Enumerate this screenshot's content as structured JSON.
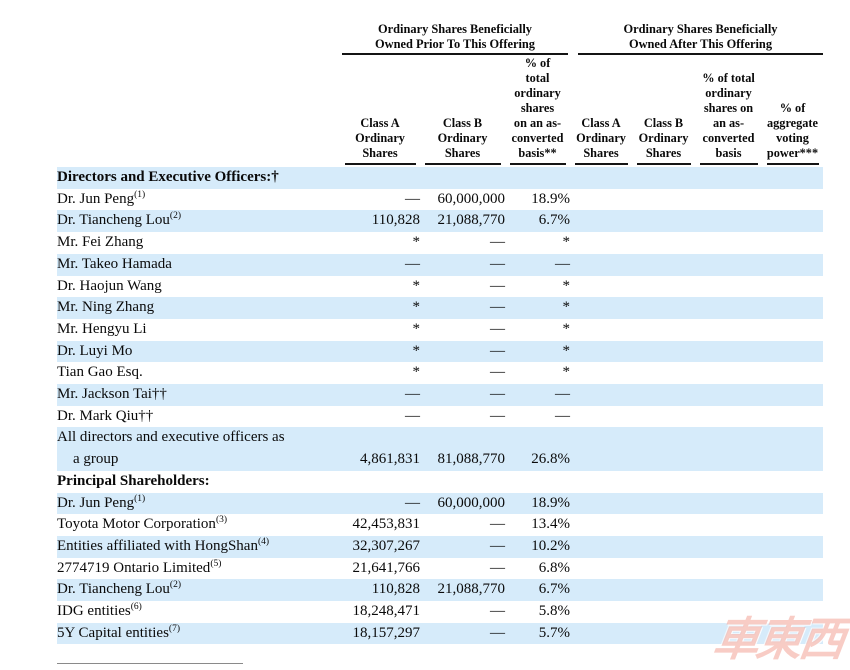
{
  "watermark": {
    "text": "車東西"
  },
  "colors": {
    "row_stripe": "#d6ebfa",
    "header_rule": "#141414",
    "footnote_rule": "#8a8a8a",
    "watermark": "#f2a296"
  },
  "header": {
    "groups": [
      {
        "label": "Ordinary Shares Beneficially\nOwned Prior To This Offering"
      },
      {
        "label": "Ordinary Shares Beneficially\nOwned After This Offering"
      }
    ],
    "columns": [
      {
        "label": "Class A\nOrdinary\nShares"
      },
      {
        "label": "Class B\nOrdinary\nShares"
      },
      {
        "label": "% of\ntotal\nordinary\nshares\non an as-\nconverted\nbasis**"
      },
      {
        "label": "Class A\nOrdinary\nShares"
      },
      {
        "label": "Class B\nOrdinary\nShares"
      },
      {
        "label": "% of total\nordinary\nshares on\nan as-\nconverted\nbasis"
      },
      {
        "label": "% of\naggregate\nvoting\npower***"
      }
    ]
  },
  "body": {
    "rows": [
      {
        "type": "section",
        "label": "Directors and Executive Officers:†"
      },
      {
        "type": "row",
        "name": "Dr. Jun Peng",
        "sup": "(1)",
        "values": [
          "—",
          "60,000,000",
          "18.9%",
          "",
          "",
          "",
          ""
        ]
      },
      {
        "type": "row",
        "name": "Dr. Tiancheng Lou",
        "sup": "(2)",
        "values": [
          "110,828",
          "21,088,770",
          "6.7%",
          "",
          "",
          "",
          ""
        ]
      },
      {
        "type": "row",
        "name": "Mr. Fei Zhang",
        "sup": "",
        "values": [
          "*",
          "—",
          "*",
          "",
          "",
          "",
          ""
        ]
      },
      {
        "type": "row",
        "name": "Mr. Takeo Hamada",
        "sup": "",
        "values": [
          "—",
          "—",
          "—",
          "",
          "",
          "",
          ""
        ]
      },
      {
        "type": "row",
        "name": "Dr. Haojun Wang",
        "sup": "",
        "values": [
          "*",
          "—",
          "*",
          "",
          "",
          "",
          ""
        ]
      },
      {
        "type": "row",
        "name": "Mr. Ning Zhang",
        "sup": "",
        "values": [
          "*",
          "—",
          "*",
          "",
          "",
          "",
          ""
        ]
      },
      {
        "type": "row",
        "name": "Mr. Hengyu Li",
        "sup": "",
        "values": [
          "*",
          "—",
          "*",
          "",
          "",
          "",
          ""
        ]
      },
      {
        "type": "row",
        "name": "Dr. Luyi Mo",
        "sup": "",
        "values": [
          "*",
          "—",
          "*",
          "",
          "",
          "",
          ""
        ]
      },
      {
        "type": "row",
        "name": "Tian Gao Esq.",
        "sup": "",
        "values": [
          "*",
          "—",
          "*",
          "",
          "",
          "",
          ""
        ]
      },
      {
        "type": "row",
        "name": "Mr. Jackson Tai††",
        "sup": "",
        "values": [
          "—",
          "—",
          "—",
          "",
          "",
          "",
          ""
        ]
      },
      {
        "type": "row",
        "name": "Dr. Mark Qiu††",
        "sup": "",
        "values": [
          "—",
          "—",
          "—",
          "",
          "",
          "",
          ""
        ]
      },
      {
        "type": "row2",
        "name_line1": "All directors and executive officers as",
        "name_line2": "a group",
        "values": [
          "4,861,831",
          "81,088,770",
          "26.8%",
          "",
          "",
          "",
          ""
        ]
      },
      {
        "type": "section",
        "label": "Principal Shareholders:"
      },
      {
        "type": "row",
        "name": "Dr. Jun Peng",
        "sup": "(1)",
        "values": [
          "—",
          "60,000,000",
          "18.9%",
          "",
          "",
          "",
          ""
        ]
      },
      {
        "type": "row",
        "name": "Toyota Motor Corporation",
        "sup": "(3)",
        "values": [
          "42,453,831",
          "—",
          "13.4%",
          "",
          "",
          "",
          ""
        ]
      },
      {
        "type": "row",
        "name": "Entities affiliated with HongShan",
        "sup": "(4)",
        "values": [
          "32,307,267",
          "—",
          "10.2%",
          "",
          "",
          "",
          ""
        ]
      },
      {
        "type": "row",
        "name": "2774719 Ontario Limited",
        "sup": "(5)",
        "values": [
          "21,641,766",
          "—",
          "6.8%",
          "",
          "",
          "",
          ""
        ]
      },
      {
        "type": "row",
        "name": "Dr. Tiancheng Lou",
        "sup": "(2)",
        "values": [
          "110,828",
          "21,088,770",
          "6.7%",
          "",
          "",
          "",
          ""
        ]
      },
      {
        "type": "row",
        "name": "IDG entities",
        "sup": "(6)",
        "values": [
          "18,248,471",
          "—",
          "5.8%",
          "",
          "",
          "",
          ""
        ]
      },
      {
        "type": "row",
        "name": "5Y Capital entities",
        "sup": "(7)",
        "values": [
          "18,157,297",
          "—",
          "5.7%",
          "",
          "",
          "",
          ""
        ]
      }
    ]
  }
}
